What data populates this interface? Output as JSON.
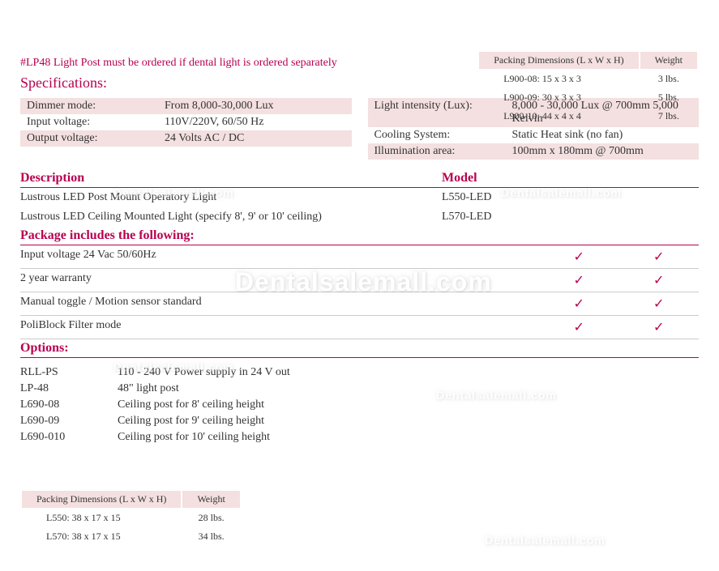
{
  "top_packing": {
    "headers": [
      "Packing Dimensions (L x W x H)",
      "Weight"
    ],
    "rows": [
      [
        "L900-08: 15 x 3 x 3",
        "3 lbs."
      ],
      [
        "L900-09: 30 x 3 x 3",
        "5 lbs."
      ],
      [
        "L900-10: 44 x 4 x 4",
        "7 lbs."
      ]
    ]
  },
  "lp48_note": "#LP48 Light Post must be ordered if dental light is ordered separately",
  "specs_title": "Specifications:",
  "specs_left": [
    {
      "label": "Dimmer mode:",
      "value": "From 8,000-30,000 Lux",
      "shaded": true
    },
    {
      "label": "Input voltage:",
      "value": "110V/220V, 60/50 Hz",
      "shaded": false
    },
    {
      "label": "Output voltage:",
      "value": "24 Volts AC / DC",
      "shaded": true
    }
  ],
  "specs_right": [
    {
      "label": "Light intensity (Lux):",
      "value": "8,000 - 30,000 Lux @ 700mm 5,000 Kelvin",
      "shaded": true
    },
    {
      "label": "Cooling System:",
      "value": "Static Heat sink (no fan)",
      "shaded": false
    },
    {
      "label": "Illumination area:",
      "value": "100mm x 180mm @ 700mm",
      "shaded": true
    }
  ],
  "desc_heading": "Description",
  "model_heading": "Model",
  "items": [
    {
      "desc": "Lustrous LED Post Mount Operatory Light",
      "model": "L550-LED"
    },
    {
      "desc": "Lustrous LED Ceiling Mounted Light (specify 8', 9' or 10' ceiling)",
      "model": "L570-LED"
    }
  ],
  "package_heading": "Package includes the following:",
  "package_rows": [
    {
      "desc": "Input voltage 24 Vac 50/60Hz",
      "c1": "✓",
      "c2": "✓"
    },
    {
      "desc": "2 year warranty",
      "c1": "✓",
      "c2": "✓"
    },
    {
      "desc": "Manual toggle / Motion sensor standard",
      "c1": "✓",
      "c2": "✓"
    },
    {
      "desc": "PoliBlock Filter mode",
      "c1": "✓",
      "c2": "✓"
    }
  ],
  "options_heading": "Options:",
  "options": [
    {
      "code": "RLL-PS",
      "desc": "110 - 240 V Power supply in 24 V out"
    },
    {
      "code": "LP-48",
      "desc": "48\" light post"
    },
    {
      "code": "L690-08",
      "desc": "Ceiling post for 8' ceiling height"
    },
    {
      "code": "L690-09",
      "desc": "Ceiling post for 9' ceiling height"
    },
    {
      "code": "L690-010",
      "desc": "Ceiling post for 10' ceiling height"
    }
  ],
  "bottom_packing": {
    "headers": [
      "Packing Dimensions (L x W x H)",
      "Weight"
    ],
    "rows": [
      [
        "L550: 38 x 17 x 15",
        "28 lbs."
      ],
      [
        "L570: 38 x 17 x 15",
        "34 lbs."
      ]
    ]
  },
  "watermark_main": "Dentalsalemall.com",
  "watermark_small": "Dentalsalemall.com"
}
